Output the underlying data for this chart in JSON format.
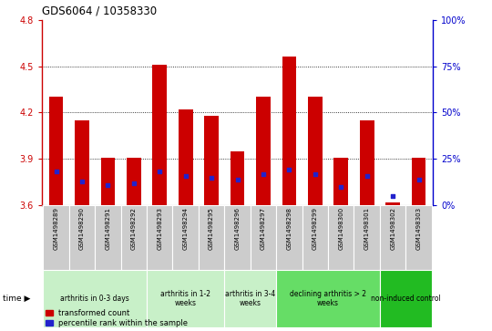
{
  "title": "GDS6064 / 10358330",
  "samples": [
    "GSM1498289",
    "GSM1498290",
    "GSM1498291",
    "GSM1498292",
    "GSM1498293",
    "GSM1498294",
    "GSM1498295",
    "GSM1498296",
    "GSM1498297",
    "GSM1498298",
    "GSM1498299",
    "GSM1498300",
    "GSM1498301",
    "GSM1498302",
    "GSM1498303"
  ],
  "red_values": [
    4.3,
    4.15,
    3.91,
    3.91,
    4.51,
    4.22,
    4.18,
    3.95,
    4.3,
    4.56,
    4.3,
    3.91,
    4.15,
    3.62,
    3.91
  ],
  "blue_pct": [
    18,
    13,
    11,
    12,
    18,
    16,
    15,
    14,
    17,
    19,
    17,
    10,
    16,
    5,
    14
  ],
  "ylim_left": [
    3.6,
    4.8
  ],
  "ylim_right": [
    0,
    100
  ],
  "yticks_left": [
    3.6,
    3.9,
    4.2,
    4.5,
    4.8
  ],
  "yticks_right": [
    0,
    25,
    50,
    75,
    100
  ],
  "bar_color": "#cc0000",
  "blue_color": "#2222cc",
  "baseline": 3.6,
  "group_boundaries": [
    0,
    4,
    7,
    9,
    13,
    15
  ],
  "group_labels": [
    "arthritis in 0-3 days",
    "arthritis in 1-2\nweeks",
    "arthritis in 3-4\nweeks",
    "declining arthritis > 2\nweeks",
    "non-induced control"
  ],
  "group_colors": [
    "#c8f0c8",
    "#c8f0c8",
    "#c8f0c8",
    "#66dd66",
    "#22bb22"
  ],
  "sample_box_color": "#cccccc",
  "left_axis_color": "#cc0000",
  "right_axis_color": "#0000cc",
  "dotted_lines": [
    3.9,
    4.2,
    4.5
  ],
  "legend_labels": [
    "transformed count",
    "percentile rank within the sample"
  ]
}
